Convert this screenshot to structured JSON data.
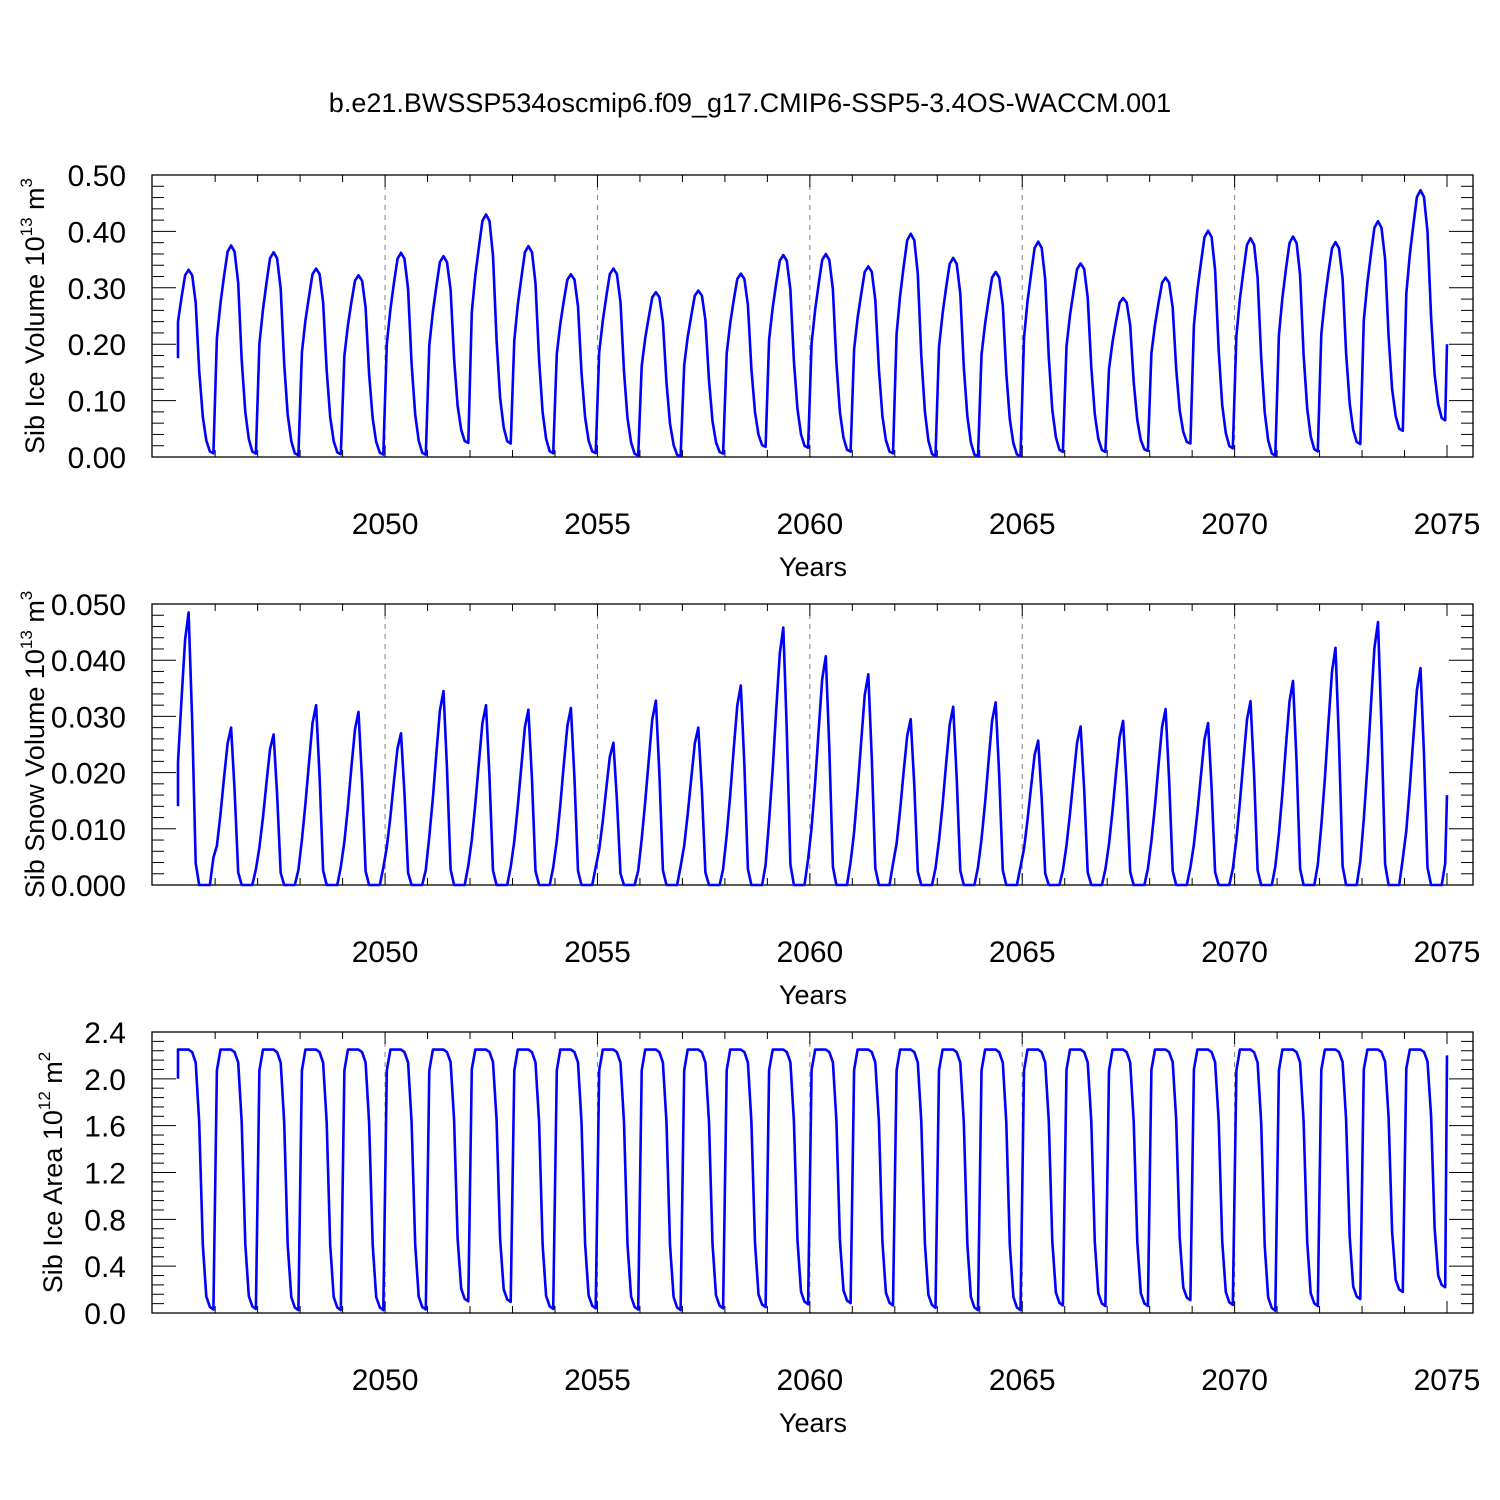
{
  "figure_title": "b.e21.BWSSP534oscmip6.f09_g17.CMIP6-SSP5-3.4OS-WACCM.001",
  "colors": {
    "line": "#0000ff",
    "axis": "#000000",
    "grid": "#808080"
  },
  "chart_data": [
    {
      "type": "line",
      "title": "",
      "ylabel": "Sib Ice Volume",
      "ylabel_unit": {
        "base": "10",
        "exp": "13",
        "unit": "m",
        "unit_exp": "3"
      },
      "xlabel": "Years",
      "xlim": [
        2045.125,
        2075.0
      ],
      "ylim": [
        0.0,
        0.5
      ],
      "yticks": [
        0.0,
        0.1,
        0.2,
        0.3,
        0.4,
        0.5
      ],
      "ytick_labels": [
        "0.00",
        "0.10",
        "0.20",
        "0.30",
        "0.40",
        "0.50"
      ],
      "xticks": [
        2050,
        2055,
        2060,
        2065,
        2070,
        2075
      ],
      "xtick_labels": [
        "2050",
        "2055",
        "2060",
        "2065",
        "2070",
        "2075"
      ],
      "grid": "vertical-dashed",
      "series": [
        {
          "name": "Sib Ice Volume",
          "seasonal_peaks": [
            0.332,
            0.375,
            0.363,
            0.334,
            0.322,
            0.362,
            0.356,
            0.43,
            0.374,
            0.324,
            0.334,
            0.292,
            0.295,
            0.325,
            0.358,
            0.36,
            0.338,
            0.396,
            0.353,
            0.328,
            0.382,
            0.343,
            0.282,
            0.318,
            0.401,
            0.388,
            0.391,
            0.381,
            0.418,
            0.473
          ],
          "seasonal_mins": [
            0.003,
            0.01,
            0.002,
            0.004,
            0.006,
            0.003,
            0.005,
            0.045,
            0.003,
            0.01,
            0.004,
            0.001,
            0.001,
            0.011,
            0.025,
            0.008,
            0.011,
            0.002,
            0.001,
            0.001,
            0.002,
            0.016,
            0.002,
            0.02,
            0.028,
            0.003,
            0.002,
            0.018,
            0.028,
            0.065
          ],
          "start_value": 0.175,
          "end_value": 0.2
        }
      ]
    },
    {
      "type": "line",
      "title": "",
      "ylabel": "Sib Snow Volume",
      "ylabel_unit": {
        "base": "10",
        "exp": "13",
        "unit": "m",
        "unit_exp": "3"
      },
      "xlabel": "Years",
      "xlim": [
        2045.125,
        2075.0
      ],
      "ylim": [
        0.0,
        0.05
      ],
      "yticks": [
        0.0,
        0.01,
        0.02,
        0.03,
        0.04,
        0.05
      ],
      "ytick_labels": [
        "0.000",
        "0.010",
        "0.020",
        "0.030",
        "0.040",
        "0.050"
      ],
      "xticks": [
        2050,
        2055,
        2060,
        2065,
        2070,
        2075
      ],
      "xtick_labels": [
        "2050",
        "2055",
        "2060",
        "2065",
        "2070",
        "2075"
      ],
      "grid": "vertical-dashed",
      "series": [
        {
          "name": "Sib Snow Volume",
          "seasonal_peaks": [
            0.0485,
            0.028,
            0.0268,
            0.032,
            0.0308,
            0.027,
            0.0345,
            0.032,
            0.0312,
            0.0315,
            0.0253,
            0.0328,
            0.028,
            0.0355,
            0.0458,
            0.0407,
            0.0375,
            0.0295,
            0.0317,
            0.0325,
            0.0257,
            0.0282,
            0.0292,
            0.0313,
            0.0288,
            0.0327,
            0.0363,
            0.0422,
            0.0468,
            0.0386
          ],
          "start_value": 0.014,
          "end_value": 0.016
        }
      ]
    },
    {
      "type": "line",
      "title": "",
      "ylabel": "Sib Ice Area",
      "ylabel_unit": {
        "base": "10",
        "exp": "12",
        "unit": "m",
        "unit_exp": "2"
      },
      "xlabel": "Years",
      "xlim": [
        2045.125,
        2075.0
      ],
      "ylim": [
        0.0,
        2.4
      ],
      "yticks": [
        0.0,
        0.4,
        0.8,
        1.2,
        1.6,
        2.0,
        2.4
      ],
      "ytick_labels": [
        "0.0",
        "0.4",
        "0.8",
        "1.2",
        "1.6",
        "2.0",
        "2.4"
      ],
      "xticks": [
        2050,
        2055,
        2060,
        2065,
        2070,
        2075
      ],
      "xtick_labels": [
        "2050",
        "2055",
        "2060",
        "2065",
        "2070",
        "2075"
      ],
      "grid": "vertical-dashed",
      "series": [
        {
          "name": "Sib Ice Area",
          "seasonal_peaks": [
            2.25,
            2.25,
            2.25,
            2.25,
            2.25,
            2.25,
            2.25,
            2.25,
            2.25,
            2.25,
            2.25,
            2.25,
            2.25,
            2.25,
            2.25,
            2.25,
            2.25,
            2.25,
            2.25,
            2.25,
            2.25,
            2.25,
            2.25,
            2.25,
            2.25,
            2.25,
            2.25,
            2.25,
            2.25,
            2.25
          ],
          "seasonal_mins": [
            0.02,
            0.04,
            0.03,
            0.02,
            0.03,
            0.02,
            0.04,
            0.16,
            0.03,
            0.04,
            0.04,
            0.02,
            0.03,
            0.05,
            0.05,
            0.1,
            0.07,
            0.06,
            0.03,
            0.02,
            0.03,
            0.1,
            0.02,
            0.1,
            0.12,
            0.02,
            0.02,
            0.1,
            0.14,
            0.22
          ],
          "start_value": 2.0,
          "end_value": 2.2
        }
      ]
    }
  ]
}
